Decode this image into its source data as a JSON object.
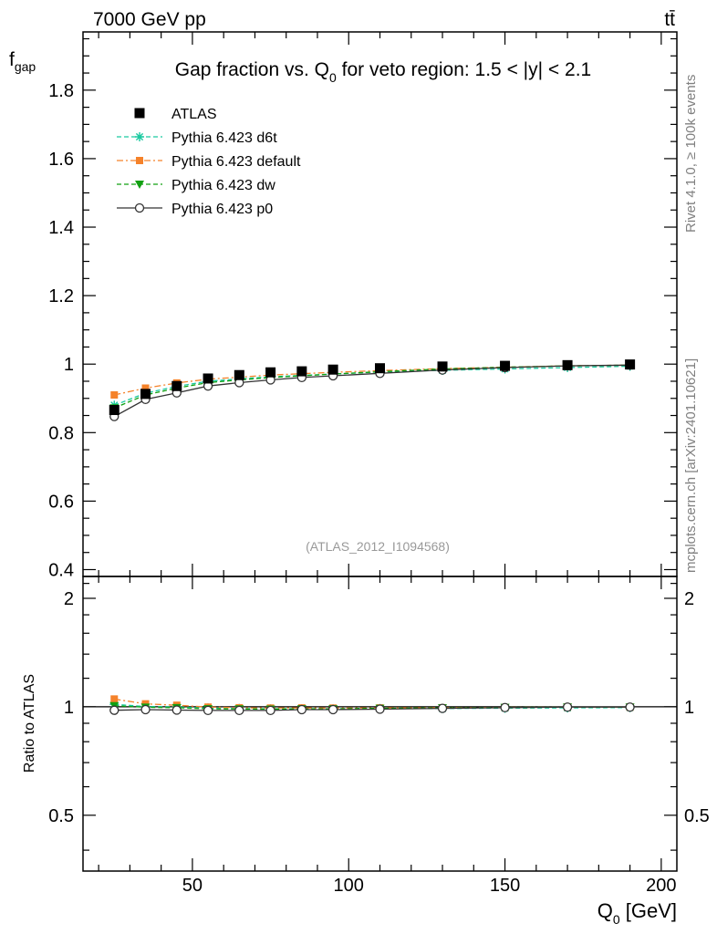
{
  "header": {
    "energy_label": "7000 GeV pp",
    "process_label": "tt̄",
    "side_label_top": "Rivet 4.1.0, ≥ 100k events",
    "side_label_bottom": "mcplots.cern.ch [arXiv:2401.10621]",
    "analysis_label": "(ATLAS_2012_I1094568)"
  },
  "colors": {
    "data": "#000000",
    "d6t": "#1ac9a0",
    "default": "#f5822a",
    "dw": "#11a011",
    "p0": "#333333",
    "side_text": "#808080",
    "analysis_text": "#999999"
  },
  "chart_data": [
    {
      "type": "line",
      "title": "Gap fraction vs. Q₀ for veto region: 1.5 < |y| < 2.1",
      "title_prefix": "Gap fraction vs. Q",
      "title_sub": "0",
      "title_suffix": " for veto region: 1.5 < |y| < 2.1",
      "ylabel_main": "f",
      "ylabel_sub": "gap",
      "xlim": [
        15,
        205
      ],
      "ylim": [
        0.38,
        1.97
      ],
      "yticks": [
        0.4,
        0.6,
        0.8,
        1.0,
        1.2,
        1.4,
        1.6,
        1.8
      ],
      "ytick_labels": [
        "0.4",
        "0.6",
        "0.8",
        "1",
        "1.2",
        "1.4",
        "1.6",
        "1.8"
      ],
      "x": [
        25,
        35,
        45,
        55,
        65,
        75,
        85,
        95,
        110,
        130,
        150,
        170,
        190
      ],
      "legend": {
        "position": "top-left",
        "entries": [
          "ATLAS",
          "Pythia 6.423 d6t",
          "Pythia 6.423 default",
          "Pythia 6.423 dw",
          "Pythia 6.423 p0"
        ]
      },
      "series": [
        {
          "name": "ATLAS",
          "key": "data",
          "marker": "square",
          "style": "none",
          "values": [
            0.866,
            0.913,
            0.936,
            0.958,
            0.968,
            0.976,
            0.979,
            0.984,
            0.988,
            0.993,
            0.995,
            0.997,
            0.999
          ]
        },
        {
          "name": "Pythia 6.423 d6t",
          "key": "d6t",
          "marker": "star",
          "style": "dashed",
          "values": [
            0.88,
            0.915,
            0.935,
            0.95,
            0.957,
            0.963,
            0.967,
            0.971,
            0.977,
            0.982,
            0.986,
            0.99,
            0.994
          ]
        },
        {
          "name": "Pythia 6.423 default",
          "key": "default",
          "marker": "square-small",
          "style": "dashdot",
          "values": [
            0.91,
            0.93,
            0.945,
            0.956,
            0.962,
            0.968,
            0.972,
            0.976,
            0.981,
            0.987,
            0.991,
            0.995,
            0.997
          ]
        },
        {
          "name": "Pythia 6.423 dw",
          "key": "dw",
          "marker": "triangle-down",
          "style": "dashed",
          "values": [
            0.872,
            0.91,
            0.93,
            0.946,
            0.954,
            0.961,
            0.966,
            0.971,
            0.978,
            0.986,
            0.991,
            0.995,
            0.997
          ]
        },
        {
          "name": "Pythia 6.423 p0",
          "key": "p0",
          "marker": "circle",
          "style": "solid",
          "values": [
            0.847,
            0.897,
            0.916,
            0.936,
            0.946,
            0.954,
            0.961,
            0.966,
            0.973,
            0.983,
            0.99,
            0.995,
            0.997
          ]
        }
      ]
    },
    {
      "type": "line",
      "title": "",
      "ylabel": "Ratio to ATLAS",
      "xlabel_main": "Q",
      "xlabel_sub": "0",
      "xlabel_suffix": " [GeV]",
      "xlim": [
        15,
        205
      ],
      "ylim": [
        0.35,
        2.3
      ],
      "yscale": "log",
      "xticks": [
        50,
        100,
        150,
        200
      ],
      "xtick_labels": [
        "50",
        "100",
        "150",
        "200"
      ],
      "yticks": [
        0.5,
        1,
        2
      ],
      "ytick_labels": [
        "0.5",
        "1",
        "2"
      ],
      "x": [
        25,
        35,
        45,
        55,
        65,
        75,
        85,
        95,
        110,
        130,
        150,
        170,
        190
      ],
      "series": [
        {
          "name": "Pythia 6.423 d6t",
          "key": "d6t",
          "marker": "star",
          "style": "dashed",
          "values": [
            1.016,
            1.002,
            0.999,
            0.992,
            0.989,
            0.987,
            0.988,
            0.987,
            0.989,
            0.989,
            0.991,
            0.993,
            0.995
          ]
        },
        {
          "name": "Pythia 6.423 default",
          "key": "default",
          "marker": "square-small",
          "style": "dashdot",
          "values": [
            1.051,
            1.019,
            1.01,
            0.998,
            0.994,
            0.992,
            0.993,
            0.992,
            0.993,
            0.994,
            0.996,
            0.998,
            0.998
          ]
        },
        {
          "name": "Pythia 6.423 dw",
          "key": "dw",
          "marker": "triangle-down",
          "style": "dashed",
          "values": [
            1.007,
            0.997,
            0.994,
            0.987,
            0.986,
            0.985,
            0.987,
            0.987,
            0.99,
            0.993,
            0.996,
            0.998,
            0.998
          ]
        },
        {
          "name": "Pythia 6.423 p0",
          "key": "p0",
          "marker": "circle",
          "style": "solid",
          "values": [
            0.978,
            0.982,
            0.979,
            0.977,
            0.977,
            0.977,
            0.982,
            0.982,
            0.985,
            0.99,
            0.995,
            0.998,
            0.998
          ]
        }
      ]
    }
  ]
}
